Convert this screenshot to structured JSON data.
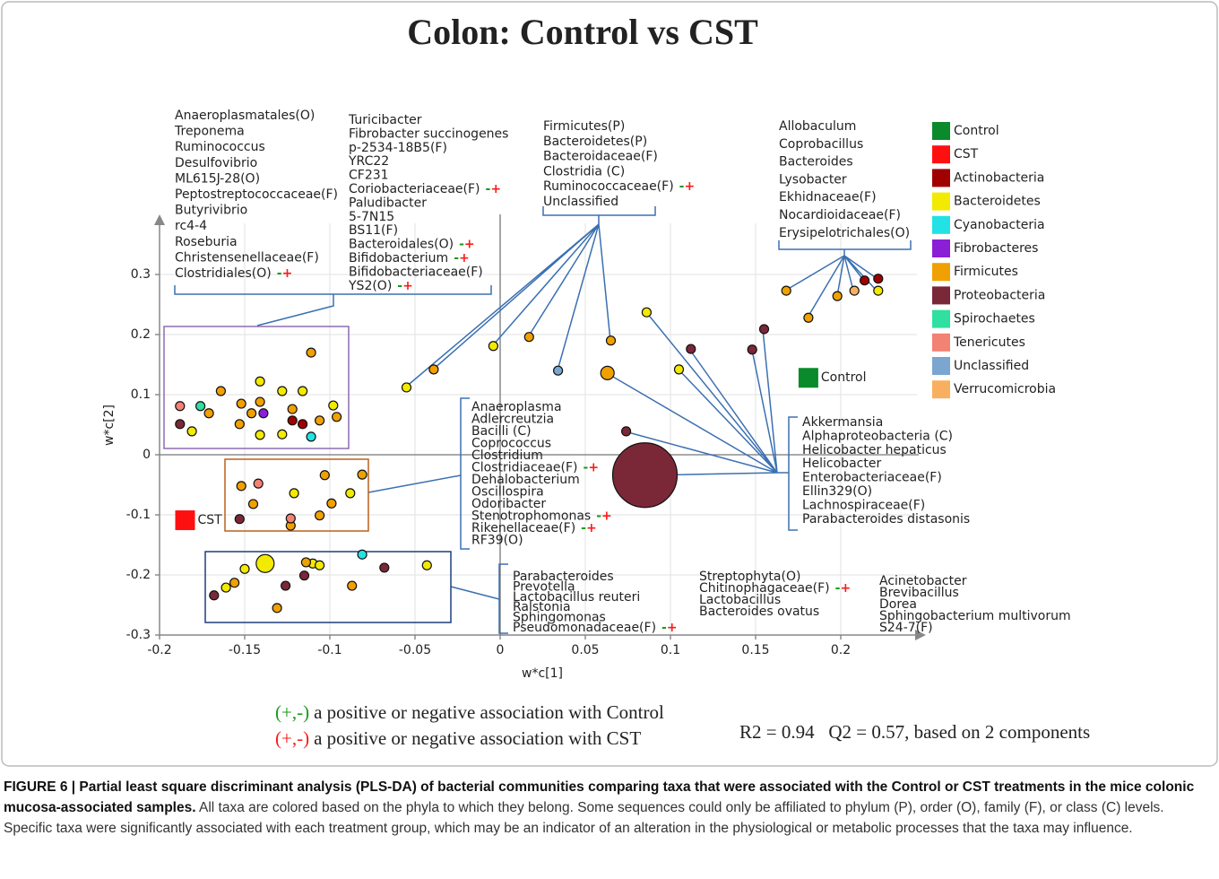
{
  "chart_data": {
    "type": "scatter",
    "title": "Colon: Control vs CST",
    "xlabel": "w*c[1]",
    "ylabel": "w*c[2]",
    "xlim": [
      -0.2,
      0.25
    ],
    "ylim": [
      -0.3,
      0.4
    ],
    "xticks": [
      -0.2,
      -0.15,
      -0.1,
      -0.05,
      0,
      0.05,
      0.1,
      0.15,
      0.2
    ],
    "yticks": [
      -0.3,
      -0.2,
      -0.1,
      0,
      0.1,
      0.2,
      0.3
    ],
    "grid": true,
    "series": [
      {
        "name": "Control",
        "color": "#0a8a2a",
        "marker": "square",
        "x": [
          0.181
        ],
        "y": [
          0.128
        ]
      },
      {
        "name": "CST",
        "color": "#ff1010",
        "marker": "square",
        "x": [
          -0.185
        ],
        "y": [
          -0.109
        ]
      },
      {
        "name": "Actinobacteria",
        "color": "#a00000",
        "x": [
          0.214,
          0.222,
          -0.122,
          -0.116
        ],
        "y": [
          0.29,
          0.293,
          0.057,
          0.051
        ],
        "sizes": [
          1,
          1,
          1,
          1
        ]
      },
      {
        "name": "Bacteroidetes",
        "color": "#f2ea00",
        "x": [
          0.222,
          0.105,
          0.086,
          -0.004,
          -0.055,
          -0.181,
          -0.141,
          -0.141,
          -0.128,
          -0.128,
          -0.116,
          -0.098,
          -0.121,
          -0.088,
          -0.161,
          -0.15,
          -0.138,
          -0.11,
          -0.106,
          -0.043
        ],
        "y": [
          0.273,
          0.142,
          0.237,
          0.181,
          0.112,
          0.039,
          0.122,
          0.033,
          0.106,
          0.034,
          0.106,
          0.082,
          -0.064,
          -0.064,
          -0.221,
          -0.19,
          -0.181,
          -0.181,
          -0.184,
          -0.184
        ],
        "sizes": [
          1,
          1,
          1,
          1,
          1,
          1,
          1,
          1,
          1,
          1,
          1,
          1,
          1,
          1,
          1,
          1,
          2,
          1,
          1,
          1
        ]
      },
      {
        "name": "Cyanobacteria",
        "color": "#22e2e6",
        "x": [
          -0.111,
          -0.081
        ],
        "y": [
          0.03,
          -0.166
        ],
        "sizes": [
          1,
          1
        ]
      },
      {
        "name": "Fibrobacteres",
        "color": "#8a1fd6",
        "x": [
          -0.139
        ],
        "y": [
          0.069
        ],
        "sizes": [
          1
        ]
      },
      {
        "name": "Firmicutes",
        "color": "#f0a000",
        "x": [
          0.168,
          0.181,
          0.198,
          0.065,
          0.063,
          0.017,
          -0.039,
          -0.111,
          -0.164,
          -0.171,
          -0.152,
          -0.153,
          -0.146,
          -0.141,
          -0.122,
          -0.106,
          -0.096,
          -0.152,
          -0.145,
          -0.123,
          -0.103,
          -0.106,
          -0.099,
          -0.081,
          -0.156,
          -0.131,
          -0.114,
          -0.087
        ],
        "y": [
          0.273,
          0.228,
          0.264,
          0.19,
          0.136,
          0.196,
          0.142,
          0.17,
          0.106,
          0.069,
          0.085,
          0.051,
          0.069,
          0.088,
          0.076,
          0.057,
          0.063,
          -0.052,
          -0.082,
          -0.118,
          -0.034,
          -0.101,
          -0.081,
          -0.033,
          -0.213,
          -0.255,
          -0.179,
          -0.218
        ],
        "sizes": [
          1,
          1,
          1,
          1,
          1.5,
          1,
          1,
          1,
          1,
          1,
          1,
          1,
          1,
          1,
          1,
          1,
          1,
          1,
          1,
          1,
          1,
          1,
          1,
          1,
          1,
          1,
          1,
          1
        ]
      },
      {
        "name": "Proteobacteria",
        "color": "#7a2838",
        "x": [
          0.155,
          0.148,
          0.112,
          0.074,
          0.085,
          -0.188,
          -0.153,
          -0.168,
          -0.126,
          -0.115,
          -0.068
        ],
        "y": [
          0.209,
          0.175,
          0.176,
          0.039,
          -0.034,
          0.051,
          -0.107,
          -0.234,
          -0.218,
          -0.201,
          -0.188
        ],
        "sizes": [
          1,
          1,
          1,
          1,
          7.2,
          1,
          1,
          1,
          1,
          1,
          1
        ]
      },
      {
        "name": "Spirochaetes",
        "color": "#2fe0a0",
        "x": [
          -0.176
        ],
        "y": [
          0.081
        ],
        "sizes": [
          1
        ]
      },
      {
        "name": "Tenericutes",
        "color": "#f28272",
        "x": [
          -0.188,
          -0.142,
          -0.123
        ],
        "y": [
          0.081,
          -0.048,
          -0.106
        ],
        "sizes": [
          1,
          1,
          1
        ]
      },
      {
        "name": "Unclassified",
        "color": "#7aa6cf",
        "x": [
          0.034
        ],
        "y": [
          0.14
        ],
        "sizes": [
          1
        ]
      },
      {
        "name": "Verrucomicrobia",
        "color": "#f8b060",
        "x": [
          0.208
        ],
        "y": [
          0.273
        ],
        "sizes": [
          1
        ]
      }
    ],
    "annotations": [
      [
        "Anaeroplasmatales(O)",
        "Treponema",
        "Ruminococcus",
        "Desulfovibrio",
        "ML615J-28(O)",
        "Peptostreptococcaceae(F)",
        "Butyrivibrio",
        "rc4-4",
        "Roseburia",
        "Christensenellaceae(F)",
        {
          "text": "Clostridiales(O)",
          "control": "-",
          "cst": "+"
        }
      ],
      [
        "Turicibacter",
        "Fibrobacter succinogenes",
        "p-2534-18B5(F)",
        "YRC22",
        "CF231",
        {
          "text": "Coriobacteriaceae(F)",
          "control": "-",
          "cst": "+"
        },
        "Paludibacter",
        "5-7N15",
        "BS11(F)",
        {
          "text": "Bacteroidales(O)",
          "control": "-",
          "cst": "+"
        },
        {
          "text": "Bifidobacterium",
          "control": "-",
          "cst": "+"
        },
        "Bifidobacteriaceae(F)",
        {
          "text": "YS2(O)",
          "control": "-",
          "cst": "+"
        }
      ],
      [
        "Firmicutes(P)",
        "Bacteroidetes(P)",
        "Bacteroidaceae(F)",
        "Clostridia (C)",
        {
          "text": "Ruminococcaceae(F)",
          "control": "-",
          "cst": "+"
        },
        "Unclassified"
      ],
      [
        "Allobaculum",
        "Coprobacillus",
        "Bacteroides",
        "Lysobacter",
        "Ekhidnaceae(F)",
        "Nocardioidaceae(F)",
        "Erysipelotrichales(O)"
      ],
      [
        "Anaeroplasma",
        "Adlercreutzia",
        "Bacilli (C)",
        "Coprococcus",
        "Clostridium",
        {
          "text": "Clostridiaceae(F)",
          "control": "-",
          "cst": "+"
        },
        "Dehalobacterium",
        "Oscillospira",
        "Odoribacter",
        {
          "text": "Stenotrophomonas",
          "control": "-",
          "cst": "+"
        },
        {
          "text": "Rikenellaceae(F)",
          "control": "-",
          "cst": "+"
        },
        "RF39(O)"
      ],
      [
        "Akkermansia",
        "Alphaproteobacteria (C)",
        "Helicobacter hepaticus",
        "Helicobacter",
        "Enterobacteriaceae(F)",
        "Ellin329(O)",
        "Lachnospiraceae(F)",
        "Parabacteroides distasonis"
      ],
      [
        "Parabacteroides",
        "Prevotella",
        "Lactobacillus reuteri",
        "Ralstonia",
        "Sphingomonas",
        {
          "text": "Pseudomonadaceae(F)",
          "control": "-",
          "cst": "+"
        }
      ],
      [
        "Streptophyta(O)",
        {
          "text": "Chitinophagaceae(F)",
          "control": "-",
          "cst": "+"
        },
        "Lactobacillus",
        "Bacteroides ovatus"
      ],
      [
        "Acinetobacter",
        "Brevibacillus",
        "Dorea",
        "Sphingobacterium multivorum",
        "S24-7(F)"
      ]
    ],
    "notes": [
      {
        "signs": "(+,-)",
        "text": "a positive or negative association with Control"
      },
      {
        "signs": "(+,-)",
        "text": "a positive or negative association with CST"
      }
    ],
    "stats": "R2 = 0.94   Q2 = 0.57, based on 2 components"
  },
  "caption": {
    "label": "FIGURE 6 | Partial least square discriminant analysis (PLS-DA) of bacterial communities comparing taxa that were associated with the Control or CST treatments in the mice colonic mucosa-associated samples.",
    "text": "All taxa are colored based on the phyla to which they belong. Some sequences could only be affiliated to phylum (P), order (O), family (F), or class (C) levels. Specific taxa were significantly associated with each treatment group, which may be an indicator of an alteration in the physiological or metabolic processes that the taxa may influence."
  }
}
